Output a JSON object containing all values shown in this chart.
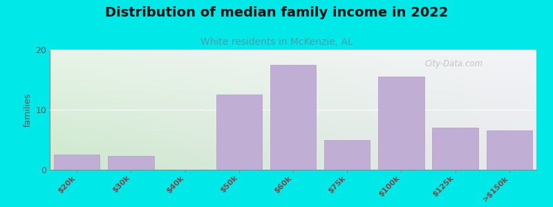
{
  "title": "Distribution of median family income in 2022",
  "subtitle": "White residents in McKenzie, AL",
  "categories": [
    "$20k",
    "$30k",
    "$40k",
    "$50k",
    "$60k",
    "$75k",
    "$100k",
    "$125k",
    ">$150k"
  ],
  "values": [
    2.5,
    2.3,
    0,
    12.5,
    17.5,
    5.0,
    15.5,
    7.0,
    6.5
  ],
  "bar_color": "#c0aed4",
  "bar_edge_color": "#b09cc4",
  "background_color": "#00e8e8",
  "grad_color_left_bottom": "#cce8cc",
  "grad_color_left_top": "#e8f4e8",
  "grad_color_right_bottom": "#e8e8ee",
  "grad_color_right_top": "#f4f4f8",
  "ylabel": "families",
  "ylim": [
    0,
    20
  ],
  "yticks": [
    0,
    10,
    20
  ],
  "title_fontsize": 14,
  "subtitle_fontsize": 10,
  "subtitle_color": "#5599aa",
  "watermark": "City-Data.com",
  "tick_label_color": "#884444",
  "tick_label_fontsize": 8,
  "ytick_color": "#555555",
  "ytick_fontsize": 9,
  "ylabel_fontsize": 9,
  "ylabel_color": "#555555"
}
